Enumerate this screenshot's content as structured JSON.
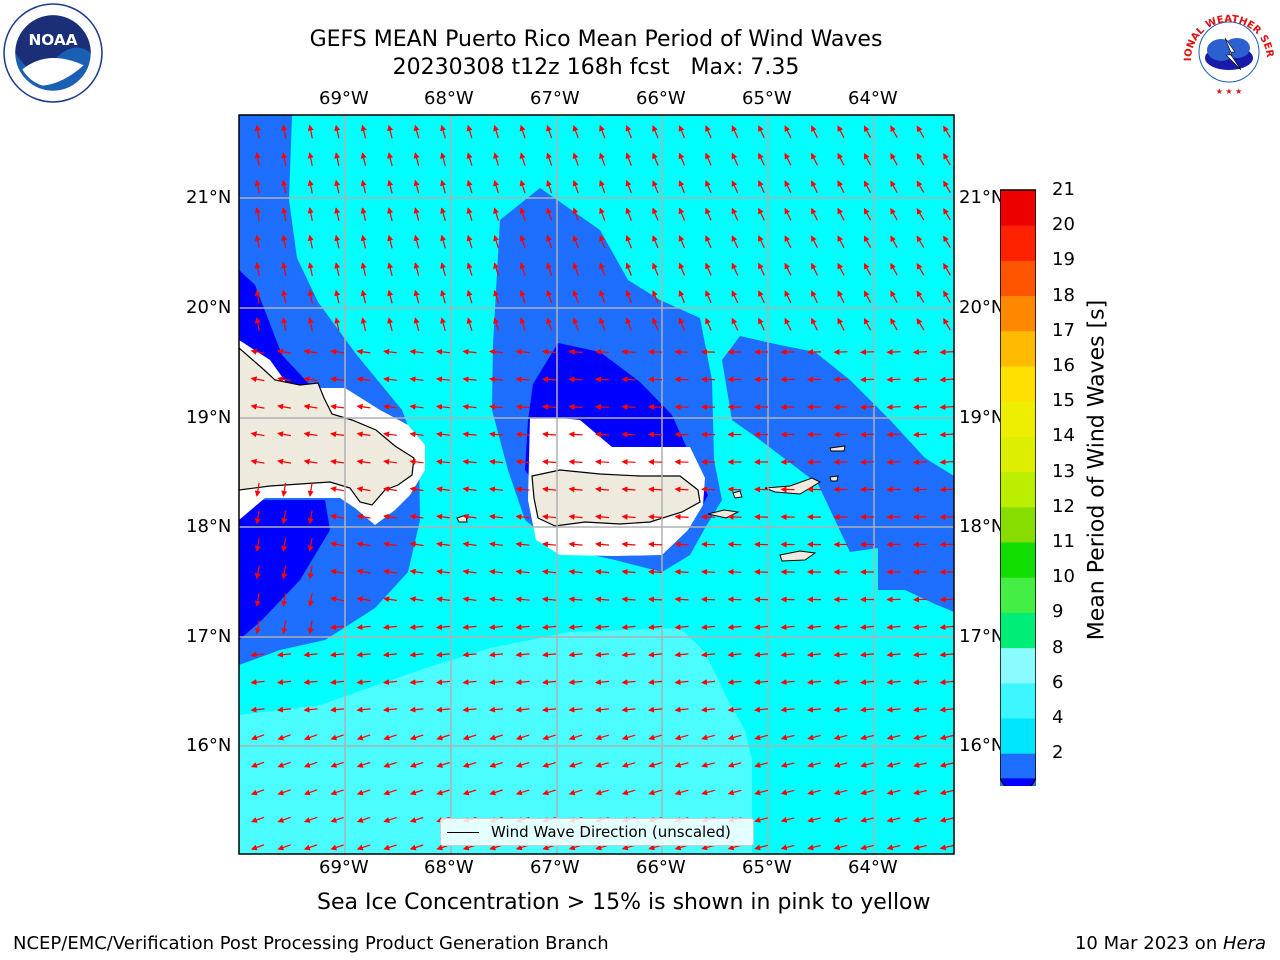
{
  "title": {
    "line1": "GEFS MEAN Puerto Rico Mean Period of Wind Waves",
    "line2": "20230308 t12z 168h fcst   Max: 7.35"
  },
  "logos": {
    "left": {
      "icon": "noaa-logo",
      "text": "NOAA"
    },
    "right": {
      "icon": "nws-logo",
      "text": "NATIONAL WEATHER SERVICE"
    }
  },
  "map": {
    "lon_ticks": [
      "69°W",
      "68°W",
      "67°W",
      "66°W",
      "65°W",
      "64°W"
    ],
    "lat_ticks": [
      "21°N",
      "20°N",
      "19°N",
      "18°N",
      "17°N",
      "16°N"
    ],
    "legend_label": "Wind Wave Direction (unscaled)",
    "arrow_color": "#ff0000",
    "land_color": "#eeeade"
  },
  "colorbar": {
    "title": "Mean Period of Wind Waves [s]",
    "labels": [
      "2",
      "4",
      "6",
      "8",
      "9",
      "10",
      "11",
      "12",
      "13",
      "14",
      "15",
      "16",
      "17",
      "18",
      "19",
      "20",
      "21"
    ],
    "colors": [
      "#0000ff",
      "#1e6eff",
      "#00e6ff",
      "#3cf7ff",
      "#8afcff",
      "#00ee77",
      "#44ee44",
      "#11dd00",
      "#88dd00",
      "#bbee00",
      "#ddee00",
      "#eeee00",
      "#ffe000",
      "#ffbb00",
      "#ff8800",
      "#ff5500",
      "#ff2200",
      "#ee0000"
    ]
  },
  "caption": "Sea Ice Concentration > 15% is shown in pink to yellow",
  "footer": {
    "left": "NCEP/EMC/Verification Post Processing Product Generation Branch",
    "date": "10 Mar 2023 on ",
    "machine": "Hera"
  }
}
